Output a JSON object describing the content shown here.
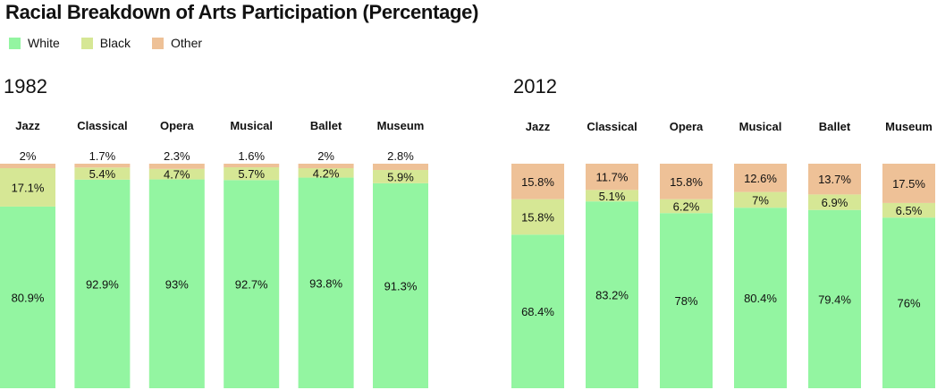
{
  "title": "Racial Breakdown of Arts Participation (Percentage)",
  "legend": [
    {
      "label": "White",
      "color": "#93f5a1"
    },
    {
      "label": "Black",
      "color": "#d6e795"
    },
    {
      "label": "Other",
      "color": "#eec197"
    }
  ],
  "chart_data": [
    {
      "type": "bar",
      "stacked": true,
      "title": "1982",
      "categories": [
        "Jazz",
        "Classical",
        "Opera",
        "Musical",
        "Ballet",
        "Museum"
      ],
      "series": [
        {
          "name": "White",
          "values": [
            80.9,
            92.9,
            93,
            92.7,
            93.8,
            91.3
          ]
        },
        {
          "name": "Black",
          "values": [
            17.1,
            5.4,
            4.7,
            5.7,
            4.2,
            5.9
          ]
        },
        {
          "name": "Other",
          "values": [
            2,
            1.7,
            2.3,
            1.6,
            2,
            2.8
          ]
        }
      ],
      "labels": {
        "White": [
          "80.9%",
          "92.9%",
          "93%",
          "92.7%",
          "93.8%",
          "91.3%"
        ],
        "Black": [
          "17.1%",
          "5.4%",
          "4.7%",
          "5.7%",
          "4.2%",
          "5.9%"
        ],
        "Other": [
          "2%",
          "1.7%",
          "2.3%",
          "1.6%",
          "2%",
          "2.8%"
        ]
      }
    },
    {
      "type": "bar",
      "stacked": true,
      "title": "2012",
      "categories": [
        "Jazz",
        "Classical",
        "Opera",
        "Musical",
        "Ballet",
        "Museum"
      ],
      "series": [
        {
          "name": "White",
          "values": [
            68.4,
            83.2,
            78,
            80.4,
            79.4,
            76
          ]
        },
        {
          "name": "Black",
          "values": [
            15.8,
            5.1,
            6.2,
            7,
            6.9,
            6.5
          ]
        },
        {
          "name": "Other",
          "values": [
            15.8,
            11.7,
            15.8,
            12.6,
            13.7,
            17.5
          ]
        }
      ],
      "labels": {
        "White": [
          "68.4%",
          "83.2%",
          "78%",
          "80.4%",
          "79.4%",
          "76%"
        ],
        "Black": [
          "15.8%",
          "5.1%",
          "6.2%",
          "7%",
          "6.9%",
          "6.5%"
        ],
        "Other": [
          "15.8%",
          "11.7%",
          "15.8%",
          "12.6%",
          "13.7%",
          "17.5%"
        ]
      }
    }
  ]
}
